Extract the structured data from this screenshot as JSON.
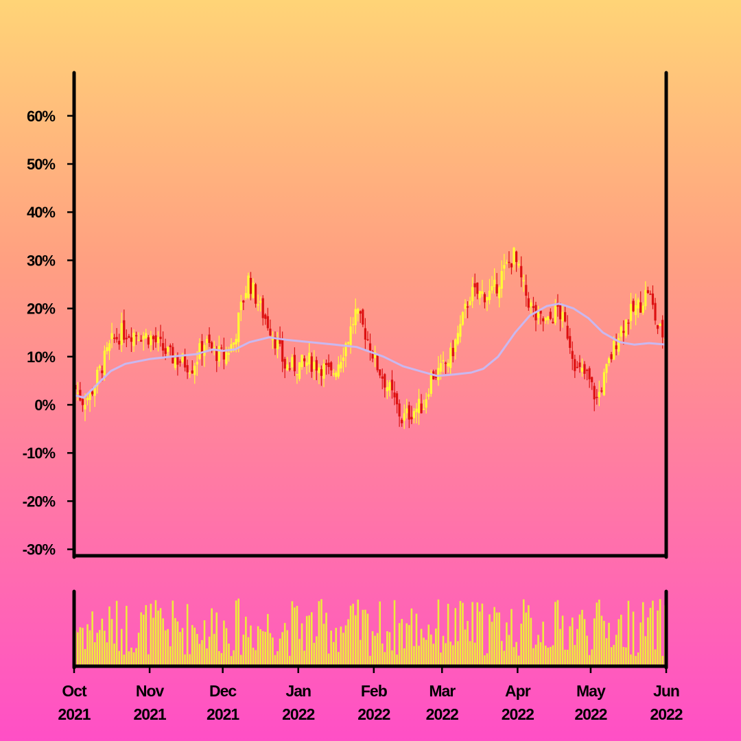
{
  "chart_data": {
    "type": "candlestick",
    "y_axis": {
      "unit": "%",
      "ticks": [
        "60%",
        "50%",
        "40%",
        "30%",
        "20%",
        "10%",
        "0%",
        "-10%",
        "-20%",
        "-30%"
      ],
      "tick_values": [
        60,
        50,
        40,
        30,
        20,
        10,
        0,
        -10,
        -20,
        -30
      ],
      "range": [
        -30,
        68
      ]
    },
    "x_axis": {
      "ticks": [
        {
          "month": "Oct",
          "year": "2021"
        },
        {
          "month": "Nov",
          "year": "2021"
        },
        {
          "month": "Dec",
          "year": "2021"
        },
        {
          "month": "Jan",
          "year": "2022"
        },
        {
          "month": "Feb",
          "year": "2022"
        },
        {
          "month": "Mar",
          "year": "2022"
        },
        {
          "month": "Apr",
          "year": "2022"
        },
        {
          "month": "May",
          "year": "2022"
        },
        {
          "month": "Jun",
          "year": "2022"
        }
      ],
      "range": [
        "2021-10-01",
        "2022-06-01"
      ]
    },
    "price_path": [
      [
        "2021-10-01",
        4
      ],
      [
        "2021-10-05",
        1
      ],
      [
        "2021-10-08",
        2
      ],
      [
        "2021-10-12",
        7
      ],
      [
        "2021-10-17",
        13
      ],
      [
        "2021-10-21",
        15
      ],
      [
        "2021-10-27",
        15
      ],
      [
        "2021-11-02",
        14
      ],
      [
        "2021-11-06",
        12
      ],
      [
        "2021-11-10",
        10
      ],
      [
        "2021-11-15",
        9
      ],
      [
        "2021-11-19",
        8
      ],
      [
        "2021-11-24",
        13
      ],
      [
        "2021-11-28",
        11
      ],
      [
        "2021-12-02",
        10
      ],
      [
        "2021-12-06",
        13
      ],
      [
        "2021-12-09",
        20
      ],
      [
        "2021-12-12",
        26
      ],
      [
        "2021-12-17",
        20
      ],
      [
        "2021-12-22",
        15
      ],
      [
        "2021-12-27",
        8
      ],
      [
        "2022-01-01",
        8
      ],
      [
        "2022-01-06",
        9
      ],
      [
        "2022-01-11",
        8
      ],
      [
        "2022-01-15",
        6
      ],
      [
        "2022-01-18",
        9
      ],
      [
        "2022-01-22",
        14
      ],
      [
        "2022-01-25",
        19
      ],
      [
        "2022-01-29",
        15
      ],
      [
        "2022-02-03",
        8
      ],
      [
        "2022-02-08",
        3
      ],
      [
        "2022-02-13",
        -3
      ],
      [
        "2022-02-18",
        -1
      ],
      [
        "2022-02-22",
        0
      ],
      [
        "2022-02-25",
        6
      ],
      [
        "2022-03-01",
        7
      ],
      [
        "2022-03-05",
        10
      ],
      [
        "2022-03-09",
        16
      ],
      [
        "2022-03-13",
        23
      ],
      [
        "2022-03-17",
        23
      ],
      [
        "2022-03-22",
        23
      ],
      [
        "2022-03-26",
        27
      ],
      [
        "2022-03-31",
        31
      ],
      [
        "2022-04-04",
        24
      ],
      [
        "2022-04-09",
        18
      ],
      [
        "2022-04-14",
        17
      ],
      [
        "2022-04-18",
        20
      ],
      [
        "2022-04-22",
        15
      ],
      [
        "2022-04-26",
        7
      ],
      [
        "2022-04-30",
        6
      ],
      [
        "2022-05-04",
        1
      ],
      [
        "2022-05-08",
        7
      ],
      [
        "2022-05-13",
        15
      ],
      [
        "2022-05-18",
        19
      ],
      [
        "2022-05-22",
        21
      ],
      [
        "2022-05-25",
        24
      ],
      [
        "2022-05-29",
        16
      ],
      [
        "2022-06-01",
        14
      ]
    ],
    "moving_average": [
      [
        "2021-10-01",
        2
      ],
      [
        "2021-10-05",
        1.5
      ],
      [
        "2021-10-10",
        4
      ],
      [
        "2021-10-16",
        7
      ],
      [
        "2021-10-22",
        8.5
      ],
      [
        "2021-11-01",
        9.5
      ],
      [
        "2021-11-10",
        10
      ],
      [
        "2021-11-20",
        10.5
      ],
      [
        "2021-11-27",
        11.5
      ],
      [
        "2021-12-01",
        11.2
      ],
      [
        "2021-12-06",
        11.5
      ],
      [
        "2021-12-12",
        13
      ],
      [
        "2021-12-20",
        14
      ],
      [
        "2021-12-27",
        13.5
      ],
      [
        "2022-01-06",
        13
      ],
      [
        "2022-01-16",
        12.5
      ],
      [
        "2022-01-25",
        12
      ],
      [
        "2022-02-05",
        10
      ],
      [
        "2022-02-13",
        8
      ],
      [
        "2022-02-20",
        7
      ],
      [
        "2022-02-27",
        6
      ],
      [
        "2022-03-06",
        6.3
      ],
      [
        "2022-03-13",
        6.7
      ],
      [
        "2022-03-18",
        7.5
      ],
      [
        "2022-03-24",
        10
      ],
      [
        "2022-03-31",
        15
      ],
      [
        "2022-04-06",
        18.5
      ],
      [
        "2022-04-13",
        20.5
      ],
      [
        "2022-04-18",
        21
      ],
      [
        "2022-04-24",
        20
      ],
      [
        "2022-04-30",
        18
      ],
      [
        "2022-05-06",
        15
      ],
      [
        "2022-05-13",
        13
      ],
      [
        "2022-05-19",
        12.5
      ],
      [
        "2022-05-25",
        12.8
      ],
      [
        "2022-06-01",
        12.5
      ]
    ],
    "colors": {
      "up_candle": "#ffff33",
      "down_candle": "#dd1111",
      "moving_average": "#c9b8f0",
      "volume_bar": "#eded3a",
      "frame": "#000000"
    },
    "volume_panel": {
      "visible": true,
      "note_values_relative": true
    },
    "grid": false
  }
}
